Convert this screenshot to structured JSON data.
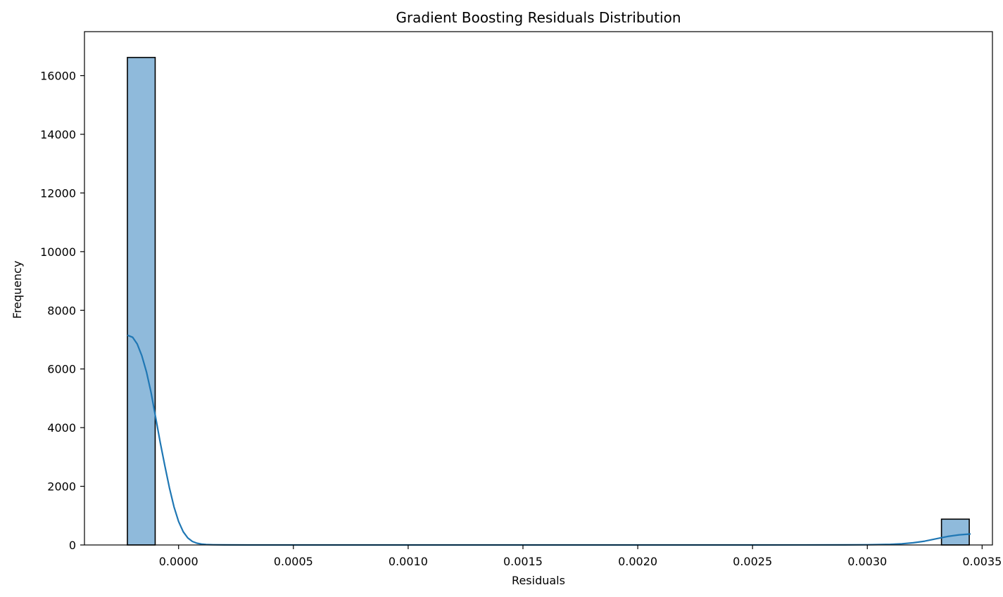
{
  "chart_data": {
    "type": "bar",
    "title": "Gradient Boosting Residuals Distribution",
    "xlabel": "Residuals",
    "ylabel": "Frequency",
    "xlim": [
      -0.00041,
      0.003545
    ],
    "ylim": [
      0,
      17500
    ],
    "xticks": [
      {
        "value": 0.0,
        "label": "0.0000"
      },
      {
        "value": 0.0005,
        "label": "0.0005"
      },
      {
        "value": 0.001,
        "label": "0.0010"
      },
      {
        "value": 0.0015,
        "label": "0.0015"
      },
      {
        "value": 0.002,
        "label": "0.0020"
      },
      {
        "value": 0.0025,
        "label": "0.0025"
      },
      {
        "value": 0.003,
        "label": "0.0030"
      },
      {
        "value": 0.0035,
        "label": "0.0035"
      }
    ],
    "yticks": [
      {
        "value": 0,
        "label": "0"
      },
      {
        "value": 2000,
        "label": "2000"
      },
      {
        "value": 4000,
        "label": "4000"
      },
      {
        "value": 6000,
        "label": "6000"
      },
      {
        "value": 8000,
        "label": "8000"
      },
      {
        "value": 10000,
        "label": "10000"
      },
      {
        "value": 12000,
        "label": "12000"
      },
      {
        "value": 14000,
        "label": "14000"
      },
      {
        "value": 16000,
        "label": "16000"
      }
    ],
    "bins": [
      {
        "start": -0.000223,
        "end": -0.000102,
        "count": 16620
      },
      {
        "start": 0.003323,
        "end": 0.003444,
        "count": 880
      }
    ],
    "kde": {
      "x": [
        -0.000223,
        -0.0002,
        -0.00018,
        -0.00016,
        -0.00014,
        -0.00012,
        -0.0001,
        -8e-05,
        -6e-05,
        -4e-05,
        -2e-05,
        0.0,
        2e-05,
        4e-05,
        6e-05,
        8e-05,
        0.0001,
        0.00012,
        0.00015,
        0.0002,
        0.0003,
        0.0005,
        0.001,
        0.0015,
        0.002,
        0.0025,
        0.0029,
        0.003,
        0.0031,
        0.00315,
        0.0032,
        0.00325,
        0.0033,
        0.00335,
        0.0034,
        0.00345
      ],
      "y": [
        7150,
        7080,
        6850,
        6450,
        5900,
        5200,
        4350,
        3500,
        2700,
        1950,
        1300,
        800,
        450,
        240,
        120,
        60,
        30,
        15,
        8,
        3,
        1,
        0,
        0,
        0,
        0,
        0,
        3,
        8,
        22,
        40,
        75,
        130,
        210,
        290,
        345,
        375
      ]
    },
    "bar_color": "#8fbadb",
    "bar_edge_color": "#000000",
    "line_color": "#1f77b4",
    "grid": false,
    "legend": "none"
  }
}
